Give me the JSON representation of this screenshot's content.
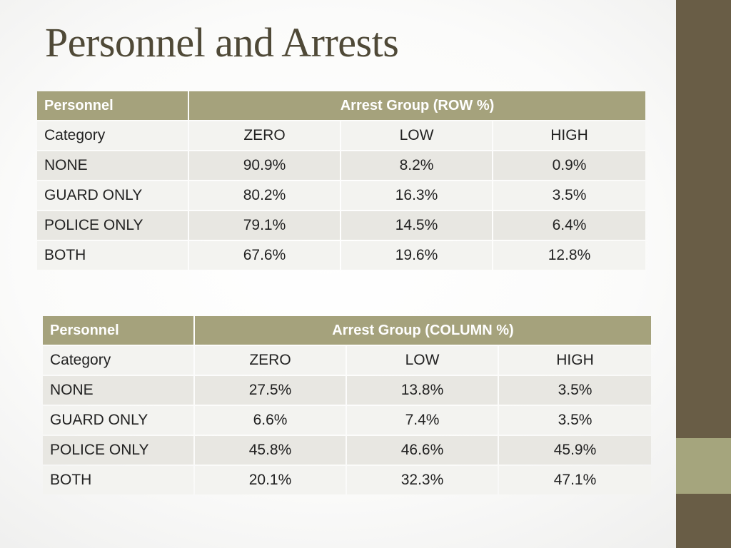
{
  "title": "Personnel and Arrests",
  "tables": [
    {
      "header_left": "Personnel",
      "header_group": "Arrest Group (ROW %)",
      "columns": [
        "Category",
        "ZERO",
        "LOW",
        "HIGH"
      ],
      "rows": [
        [
          "NONE",
          "90.9%",
          "8.2%",
          "0.9%"
        ],
        [
          "GUARD ONLY",
          "80.2%",
          "16.3%",
          "3.5%"
        ],
        [
          "POLICE ONLY",
          "79.1%",
          "14.5%",
          "6.4%"
        ],
        [
          "BOTH",
          "67.6%",
          "19.6%",
          "12.8%"
        ]
      ]
    },
    {
      "header_left": "Personnel",
      "header_group": "Arrest Group (COLUMN %)",
      "columns": [
        "Category",
        "ZERO",
        "LOW",
        "HIGH"
      ],
      "rows": [
        [
          "NONE",
          "27.5%",
          "13.8%",
          "3.5%"
        ],
        [
          "GUARD ONLY",
          "6.6%",
          "7.4%",
          "3.5%"
        ],
        [
          "POLICE ONLY",
          "45.8%",
          "46.6%",
          "45.9%"
        ],
        [
          "BOTH",
          "20.1%",
          "32.3%",
          "47.1%"
        ]
      ]
    }
  ]
}
